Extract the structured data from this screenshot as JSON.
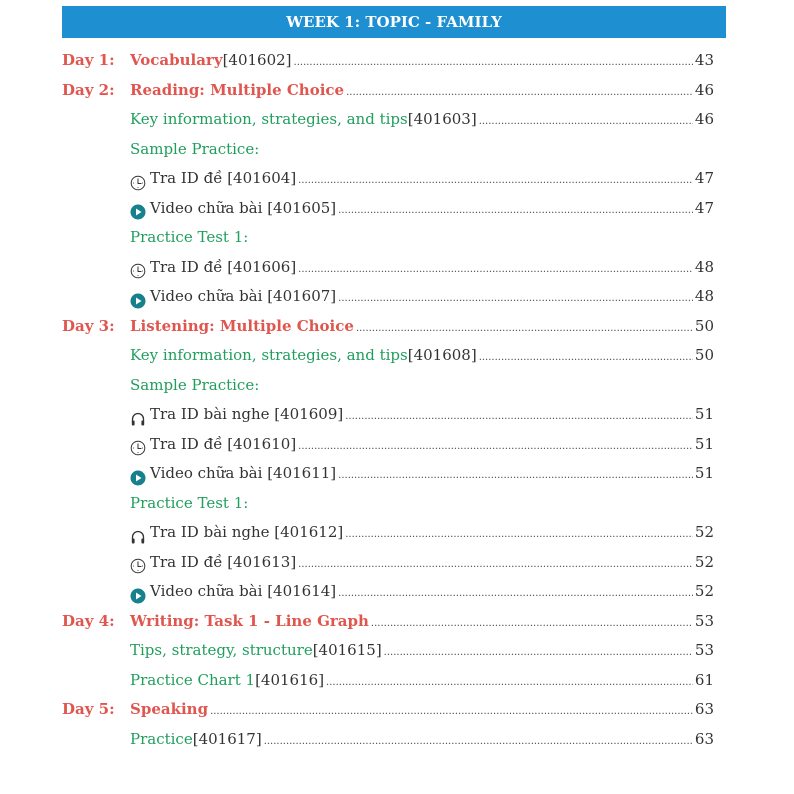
{
  "header": {
    "title": "WEEK 1: TOPIC - FAMILY"
  },
  "colors": {
    "header": "#1e8fd0",
    "day": "#e0564f",
    "section": "#1f9e5c",
    "play": "#16808c"
  },
  "entries": [
    {
      "day": "Day 1:",
      "title": "Vocabulary",
      "tail": " [401602]",
      "page": "43",
      "style": "red"
    },
    {
      "day": "Day 2:",
      "title": "Reading: Multiple Choice",
      "tail": "",
      "page": "46",
      "style": "red"
    },
    {
      "title": "Key information, strategies, and tips",
      "tail": " [401603]",
      "page": "46",
      "style": "green"
    },
    {
      "title": "Sample Practice:",
      "style": "green",
      "nodots": true
    },
    {
      "icon": "clock-icon",
      "tail": "Tra ID đề [401604]",
      "page": "47",
      "style": "sub"
    },
    {
      "icon": "play-icon",
      "tail": "Video chữa bài [401605]",
      "page": "47",
      "style": "sub"
    },
    {
      "title": "Practice Test 1:",
      "style": "green",
      "nodots": true
    },
    {
      "icon": "clock-icon",
      "tail": "Tra ID đề [401606]",
      "page": "48",
      "style": "sub"
    },
    {
      "icon": "play-icon",
      "tail": "Video chữa bài [401607]",
      "page": "48",
      "style": "sub"
    },
    {
      "day": "Day 3:",
      "title": "Listening: Multiple Choice",
      "tail": "",
      "page": "50",
      "style": "red"
    },
    {
      "title": "Key information, strategies, and tips",
      "tail": " [401608]",
      "page": "50",
      "style": "green"
    },
    {
      "title": "Sample Practice:",
      "style": "green",
      "nodots": true
    },
    {
      "icon": "headphones-icon",
      "tail": "Tra ID bài nghe [401609]",
      "page": "51",
      "style": "sub"
    },
    {
      "icon": "clock-icon",
      "tail": "Tra ID đề [401610]",
      "page": "51",
      "style": "sub"
    },
    {
      "icon": "play-icon",
      "tail": "Video chữa bài [401611]",
      "page": "51",
      "style": "sub"
    },
    {
      "title": "Practice Test 1:",
      "style": "green",
      "nodots": true
    },
    {
      "icon": "headphones-icon",
      "tail": "Tra ID bài nghe [401612]",
      "page": "52",
      "style": "sub"
    },
    {
      "icon": "clock-icon",
      "tail": "Tra ID đề [401613]",
      "page": "52",
      "style": "sub"
    },
    {
      "icon": "play-icon",
      "tail": "Video chữa bài [401614]",
      "page": "52",
      "style": "sub"
    },
    {
      "day": "Day 4:",
      "title": "Writing: Task 1 - Line Graph",
      "tail": "",
      "page": "53",
      "style": "red"
    },
    {
      "title": "Tips, strategy, structure",
      "tail": " [401615]",
      "page": "53",
      "style": "green"
    },
    {
      "title": "Practice Chart 1",
      "tail": " [401616]",
      "page": "61",
      "style": "green"
    },
    {
      "day": "Day 5:",
      "title": "Speaking",
      "tail": "",
      "page": "63",
      "style": "red"
    },
    {
      "title": "Practice",
      "tail": " [401617]",
      "page": "63",
      "style": "green"
    }
  ]
}
